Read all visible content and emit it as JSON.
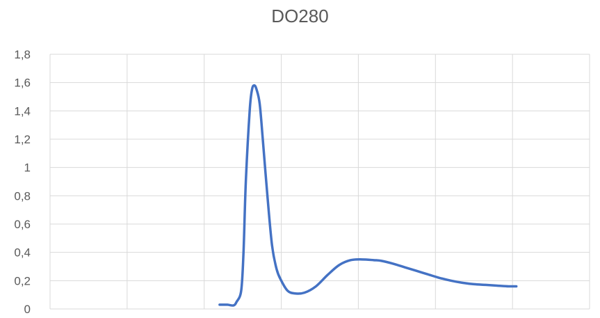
{
  "chart_data": {
    "type": "line",
    "title": "DO280",
    "xlabel": "",
    "ylabel": "",
    "ylim": [
      0,
      1.8
    ],
    "y_ticks": [
      "0",
      "0,2",
      "0,4",
      "0,6",
      "0,8",
      "1",
      "1,2",
      "1,4",
      "1,6",
      "1,8"
    ],
    "x_gridlines": 7,
    "grid": "on",
    "series": [
      {
        "color": "#4472C4",
        "points": [
          [
            2.2,
            0.03
          ],
          [
            2.3,
            0.03
          ],
          [
            2.38,
            0.025
          ],
          [
            2.42,
            0.05
          ],
          [
            2.48,
            0.13
          ],
          [
            2.51,
            0.4
          ],
          [
            2.54,
            0.9
          ],
          [
            2.59,
            1.4
          ],
          [
            2.62,
            1.55
          ],
          [
            2.65,
            1.58
          ],
          [
            2.68,
            1.55
          ],
          [
            2.72,
            1.45
          ],
          [
            2.76,
            1.2
          ],
          [
            2.82,
            0.8
          ],
          [
            2.88,
            0.45
          ],
          [
            2.94,
            0.28
          ],
          [
            3.0,
            0.2
          ],
          [
            3.08,
            0.13
          ],
          [
            3.17,
            0.11
          ],
          [
            3.3,
            0.115
          ],
          [
            3.45,
            0.16
          ],
          [
            3.6,
            0.24
          ],
          [
            3.75,
            0.31
          ],
          [
            3.9,
            0.345
          ],
          [
            4.05,
            0.35
          ],
          [
            4.2,
            0.345
          ],
          [
            4.3,
            0.34
          ],
          [
            4.45,
            0.32
          ],
          [
            4.6,
            0.295
          ],
          [
            4.75,
            0.27
          ],
          [
            4.9,
            0.245
          ],
          [
            5.05,
            0.22
          ],
          [
            5.2,
            0.2
          ],
          [
            5.35,
            0.185
          ],
          [
            5.5,
            0.175
          ],
          [
            5.65,
            0.17
          ],
          [
            5.8,
            0.165
          ],
          [
            5.95,
            0.16
          ],
          [
            6.05,
            0.16
          ]
        ]
      }
    ],
    "colors": {
      "line": "#4472C4",
      "grid": "#D9D9D9",
      "text": "#595959"
    }
  }
}
